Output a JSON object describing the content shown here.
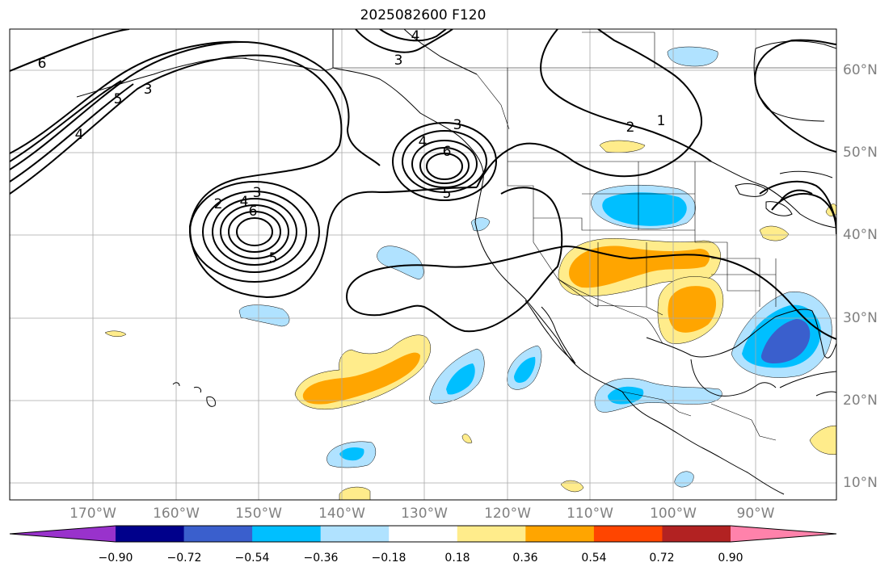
{
  "title": "2025082600 F120",
  "lon_labels": [
    "170°W",
    "160°W",
    "150°W",
    "140°W",
    "130°W",
    "120°W",
    "110°W",
    "100°W",
    "90°W"
  ],
  "lat_labels": [
    "60°N",
    "50°N",
    "40°N",
    "30°N",
    "20°N",
    "10°N"
  ],
  "colorbar": {
    "colors": [
      "#9932cc",
      "#00008b",
      "#3a5fcd",
      "#00bfff",
      "#b0e2ff",
      "#ffffff",
      "#ffec8b",
      "#ffa500",
      "#ff4500",
      "#b22222",
      "#ff82ab"
    ],
    "ticks": [
      "−0.90",
      "−0.72",
      "−0.54",
      "−0.36",
      "−0.18",
      "0.18",
      "0.36",
      "0.54",
      "0.72",
      "0.90"
    ]
  },
  "contour_labels": [
    "6",
    "4",
    "3",
    "5",
    "4",
    "3",
    "2",
    "4",
    "3",
    "6",
    "5",
    "3",
    "4",
    "6",
    "5",
    "2",
    "1"
  ],
  "colors": {
    "light_blue": "#b0e2ff",
    "blue": "#00bfff",
    "dark_blue": "#3a5fcd",
    "light_yellow": "#ffec8b",
    "orange": "#ffa500"
  }
}
